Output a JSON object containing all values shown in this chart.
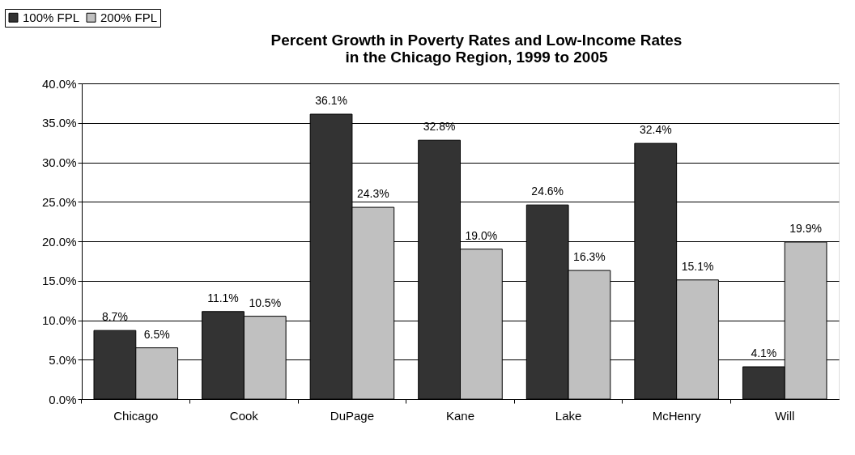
{
  "chart_data": {
    "type": "bar",
    "title": "Percent Growth in Poverty Rates and Low-Income Rates\nin the Chicago Region, 1999 to 2005",
    "categories": [
      "Chicago",
      "Cook",
      "DuPage",
      "Kane",
      "Lake",
      "McHenry",
      "Will"
    ],
    "series": [
      {
        "name": "100% FPL",
        "color": "#333333",
        "values": [
          8.7,
          11.1,
          36.1,
          32.8,
          24.6,
          32.4,
          4.1
        ],
        "value_labels": [
          "8.7%",
          "11.1%",
          "36.1%",
          "32.8%",
          "24.6%",
          "32.4%",
          "4.1%"
        ]
      },
      {
        "name": "200% FPL",
        "color": "#c0c0c0",
        "values": [
          6.5,
          10.5,
          24.3,
          19.0,
          16.3,
          15.1,
          19.9
        ],
        "value_labels": [
          "6.5%",
          "10.5%",
          "24.3%",
          "19.0%",
          "16.3%",
          "15.1%",
          "19.9%"
        ]
      }
    ],
    "ylim": [
      0,
      40
    ],
    "yticks": [
      {
        "value": 0,
        "label": "0.0%"
      },
      {
        "value": 5,
        "label": "5.0%"
      },
      {
        "value": 10,
        "label": "10.0%"
      },
      {
        "value": 15,
        "label": "15.0%"
      },
      {
        "value": 20,
        "label": "20.0%"
      },
      {
        "value": 25,
        "label": "25.0%"
      },
      {
        "value": 30,
        "label": "30.0%"
      },
      {
        "value": 35,
        "label": "35.0%"
      },
      {
        "value": 40,
        "label": "40.0%"
      }
    ],
    "grid": "y",
    "legend": "top left"
  }
}
